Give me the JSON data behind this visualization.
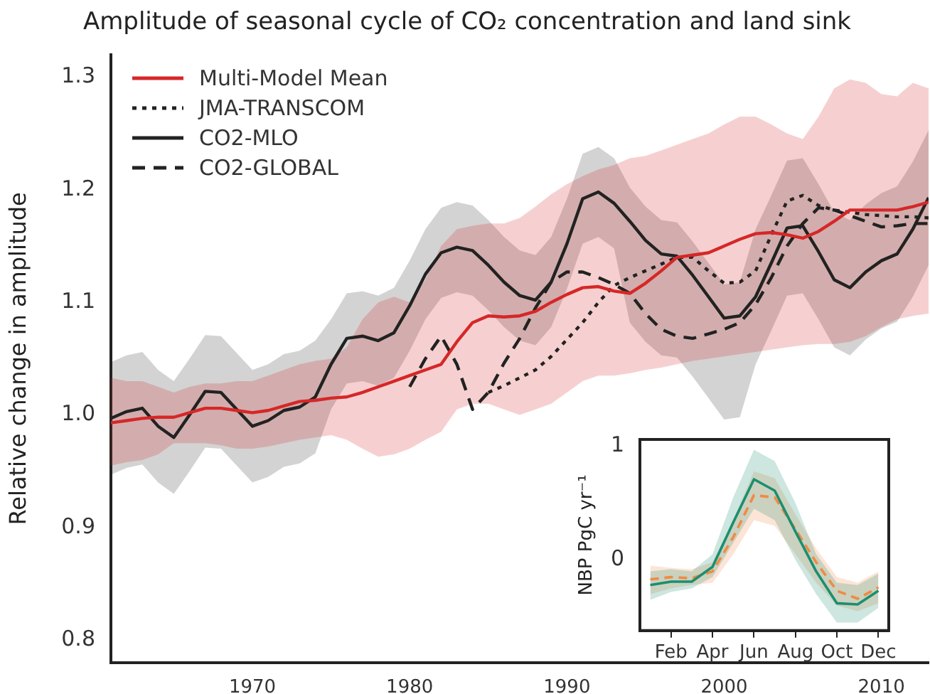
{
  "chart_data": [
    {
      "type": "line",
      "title": "Amplitude of seasonal cycle of CO₂ concentration and land sink",
      "ylabel": "Relative change in amplitude",
      "legend": "top left",
      "x": [
        1961,
        1962,
        1963,
        1964,
        1965,
        1966,
        1967,
        1968,
        1969,
        1970,
        1971,
        1972,
        1973,
        1974,
        1975,
        1976,
        1977,
        1978,
        1979,
        1980,
        1981,
        1982,
        1983,
        1984,
        1985,
        1986,
        1987,
        1988,
        1989,
        1990,
        1991,
        1992,
        1993,
        1994,
        1995,
        1996,
        1997,
        1998,
        1999,
        2000,
        2001,
        2002,
        2003,
        2004,
        2005,
        2006,
        2007,
        2008,
        2009,
        2010,
        2011,
        2012,
        2013
      ],
      "xlim": [
        1961,
        2013
      ],
      "xticks": [
        1970,
        1980,
        1990,
        2000,
        2010
      ],
      "ylim": [
        0.78,
        1.32
      ],
      "yticks": [
        0.8,
        0.9,
        {
          "value": 1,
          "label": "1.0"
        },
        1.1,
        1.2,
        1.3
      ],
      "series": [
        {
          "name": "Multi-Model Mean",
          "color": "#d62728",
          "line_style": "solid",
          "values": [
            0.993,
            0.995,
            0.997,
            0.998,
            0.998,
            1.002,
            1.006,
            1.006,
            1.004,
            1.002,
            1.004,
            1.008,
            1.012,
            1.013,
            1.015,
            1.016,
            1.02,
            1.025,
            1.03,
            1.035,
            1.04,
            1.045,
            1.065,
            1.082,
            1.088,
            1.087,
            1.088,
            1.092,
            1.1,
            1.107,
            1.113,
            1.114,
            1.11,
            1.108,
            1.117,
            1.128,
            1.14,
            1.142,
            1.144,
            1.15,
            1.156,
            1.161,
            1.162,
            1.16,
            1.157,
            1.163,
            1.172,
            1.182,
            1.182,
            1.182,
            1.182,
            1.185,
            1.189
          ],
          "lower": [
            0.955,
            0.958,
            0.96,
            0.965,
            0.975,
            0.975,
            0.975,
            0.973,
            0.97,
            0.97,
            0.972,
            0.975,
            0.978,
            0.98,
            0.982,
            0.978,
            0.97,
            0.963,
            0.965,
            0.97,
            0.978,
            0.985,
            1.005,
            1.01,
            1.01,
            1.005,
            1,
            1.005,
            1.01,
            1.02,
            1.03,
            1.035,
            1.035,
            1.037,
            1.04,
            1.042,
            1.045,
            1.048,
            1.05,
            1.052,
            1.054,
            1.056,
            1.058,
            1.06,
            1.062,
            1.063,
            1.063,
            1.065,
            1.07,
            1.078,
            1.085,
            1.088,
            1.09
          ],
          "upper": [
            1.033,
            1.03,
            1.03,
            1.025,
            1.02,
            1.025,
            1.028,
            1.028,
            1.03,
            1.03,
            1.035,
            1.04,
            1.045,
            1.048,
            1.05,
            1.06,
            1.085,
            1.1,
            1.105,
            1.1,
            1.12,
            1.15,
            1.165,
            1.168,
            1.17,
            1.17,
            1.175,
            1.185,
            1.196,
            1.205,
            1.212,
            1.218,
            1.222,
            1.228,
            1.23,
            1.235,
            1.24,
            1.245,
            1.25,
            1.258,
            1.265,
            1.265,
            1.258,
            1.25,
            1.245,
            1.265,
            1.29,
            1.298,
            1.295,
            1.285,
            1.283,
            1.295,
            1.29
          ]
        },
        {
          "name": "JMA-TRANSCOM",
          "color": "#222222",
          "line_style": "dotted",
          "x": [
            1985,
            1986,
            1987,
            1988,
            1989,
            1990,
            1991,
            1992,
            1993,
            1994,
            1995,
            1996,
            1997,
            1998,
            1999,
            2000,
            2001,
            2002,
            2003,
            2004,
            2005,
            2006,
            2007,
            2008,
            2009,
            2010,
            2011,
            2012,
            2013
          ],
          "values": [
            1.02,
            1.026,
            1.033,
            1.04,
            1.052,
            1.067,
            1.082,
            1.1,
            1.115,
            1.122,
            1.128,
            1.134,
            1.14,
            1.14,
            1.128,
            1.117,
            1.118,
            1.128,
            1.16,
            1.19,
            1.195,
            1.186,
            1.182,
            1.18,
            1.178,
            1.177,
            1.176,
            1.176,
            1.175
          ]
        },
        {
          "name": "CO2-MLO",
          "color": "#222222",
          "line_style": "solid",
          "values": [
            0.997,
            1.003,
            1.006,
            0.99,
            0.98,
            1,
            1.021,
            1.02,
            1.005,
            0.99,
            0.995,
            1.004,
            1.007,
            1.016,
            1.045,
            1.068,
            1.07,
            1.066,
            1.073,
            1.097,
            1.125,
            1.144,
            1.149,
            1.146,
            1.133,
            1.118,
            1.106,
            1.102,
            1.118,
            1.152,
            1.192,
            1.198,
            1.188,
            1.172,
            1.155,
            1.143,
            1.141,
            1.124,
            1.105,
            1.086,
            1.088,
            1.105,
            1.135,
            1.166,
            1.168,
            1.145,
            1.12,
            1.113,
            1.127,
            1.137,
            1.143,
            1.165,
            1.193
          ],
          "lower": [
            0.947,
            0.953,
            0.956,
            0.94,
            0.93,
            0.95,
            0.971,
            0.97,
            0.955,
            0.94,
            0.945,
            0.954,
            0.957,
            0.966,
            1.005,
            1.028,
            1.03,
            1.026,
            1.033,
            1.057,
            1.085,
            1.104,
            1.109,
            1.106,
            1.093,
            1.078,
            1.066,
            1.062,
            1.078,
            1.112,
            1.152,
            1.158,
            1.148,
            1.082,
            1.065,
            1.053,
            1.051,
            1.034,
            1.015,
            0.996,
            0.998,
            1.045,
            1.075,
            1.106,
            1.108,
            1.085,
            1.06,
            1.053,
            1.067,
            1.077,
            1.083,
            1.105,
            1.133
          ],
          "upper": [
            1.047,
            1.053,
            1.056,
            1.04,
            1.03,
            1.05,
            1.071,
            1.07,
            1.055,
            1.04,
            1.045,
            1.054,
            1.057,
            1.066,
            1.085,
            1.108,
            1.11,
            1.106,
            1.113,
            1.137,
            1.165,
            1.184,
            1.189,
            1.186,
            1.173,
            1.158,
            1.146,
            1.142,
            1.158,
            1.192,
            1.232,
            1.238,
            1.228,
            1.202,
            1.185,
            1.173,
            1.171,
            1.154,
            1.135,
            1.116,
            1.118,
            1.165,
            1.195,
            1.226,
            1.228,
            1.205,
            1.18,
            1.173,
            1.187,
            1.197,
            1.203,
            1.225,
            1.253
          ]
        },
        {
          "name": "CO2-GLOBAL",
          "color": "#222222",
          "line_style": "dashed",
          "x": [
            1980,
            1981,
            1982,
            1983,
            1984,
            1985,
            1986,
            1987,
            1988,
            1989,
            1990,
            1991,
            1992,
            1993,
            1994,
            1995,
            1996,
            1997,
            1998,
            1999,
            2000,
            2001,
            2002,
            2003,
            2004,
            2005,
            2006,
            2007,
            2008,
            2009,
            2010,
            2011,
            2012,
            2013
          ],
          "values": [
            1.025,
            1.05,
            1.07,
            1.045,
            1.005,
            1.02,
            1.046,
            1.068,
            1.095,
            1.118,
            1.127,
            1.127,
            1.122,
            1.116,
            1.108,
            1.09,
            1.076,
            1.07,
            1.068,
            1.072,
            1.076,
            1.082,
            1.098,
            1.122,
            1.15,
            1.17,
            1.184,
            1.182,
            1.177,
            1.172,
            1.167,
            1.168,
            1.17,
            1.17
          ]
        }
      ]
    },
    {
      "type": "line",
      "ylabel": "NBP PgC yr⁻¹",
      "categories": [
        null,
        "Feb",
        null,
        "Apr",
        null,
        "Jun",
        null,
        "Aug",
        null,
        "Oct",
        null,
        "Dec"
      ],
      "ylim": [
        -0.62,
        1.06
      ],
      "yticks": [
        0,
        1
      ],
      "series": [
        {
          "color": "#1b8f6f",
          "line_style": "solid",
          "values": [
            -0.22,
            -0.19,
            -0.19,
            -0.06,
            0.33,
            0.71,
            0.61,
            0.25,
            -0.1,
            -0.38,
            -0.39,
            -0.27
          ],
          "lower": [
            -0.35,
            -0.28,
            -0.25,
            -0.15,
            0.15,
            0.45,
            0.35,
            0,
            -0.3,
            -0.55,
            -0.55,
            -0.42
          ],
          "upper": [
            -0.1,
            -0.08,
            -0.1,
            0.05,
            0.55,
            0.97,
            0.87,
            0.5,
            0.05,
            -0.2,
            -0.22,
            -0.12
          ]
        },
        {
          "color": "#f08a45",
          "line_style": "dashed",
          "values": [
            -0.17,
            -0.15,
            -0.16,
            -0.1,
            0.2,
            0.57,
            0.55,
            0.27,
            -0.02,
            -0.27,
            -0.34,
            -0.24
          ],
          "lower": [
            -0.3,
            -0.25,
            -0.22,
            -0.2,
            0.05,
            0.35,
            0.3,
            0.05,
            -0.2,
            -0.4,
            -0.45,
            -0.38
          ],
          "upper": [
            -0.05,
            -0.07,
            -0.08,
            -0.02,
            0.35,
            0.78,
            0.72,
            0.4,
            0.1,
            -0.15,
            -0.2,
            -0.1
          ]
        }
      ]
    }
  ]
}
